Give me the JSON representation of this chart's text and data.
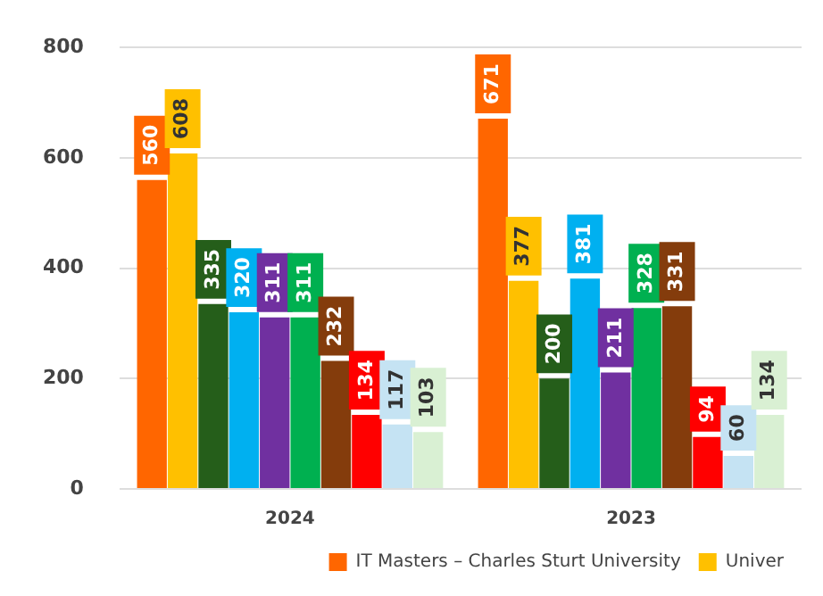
{
  "chart_data": {
    "type": "bar",
    "categories": [
      "2024",
      "2023"
    ],
    "series": [
      {
        "name": "IT Masters – Charles Sturt University",
        "color": "#ff6600",
        "values": [
          560,
          671
        ]
      },
      {
        "name": "Univer",
        "color": "#ffc000",
        "values": [
          608,
          377
        ]
      },
      {
        "color": "#255e1a",
        "values": [
          335,
          200
        ]
      },
      {
        "color": "#00b0f0",
        "values": [
          320,
          381
        ]
      },
      {
        "color": "#7030a0",
        "values": [
          311,
          211
        ]
      },
      {
        "color": "#00b050",
        "values": [
          311,
          328
        ]
      },
      {
        "color": "#843c0c",
        "values": [
          232,
          331
        ]
      },
      {
        "color": "#ff0000",
        "values": [
          134,
          94
        ]
      },
      {
        "color": "#c5e3f3",
        "values": [
          117,
          60
        ]
      },
      {
        "color": "#d9f0d3",
        "values": [
          103,
          134
        ]
      }
    ],
    "ylim": [
      0,
      800
    ],
    "yticks": [
      0,
      200,
      400,
      600,
      800
    ],
    "grid": "y",
    "legend": "bottom",
    "data_labels": true
  }
}
